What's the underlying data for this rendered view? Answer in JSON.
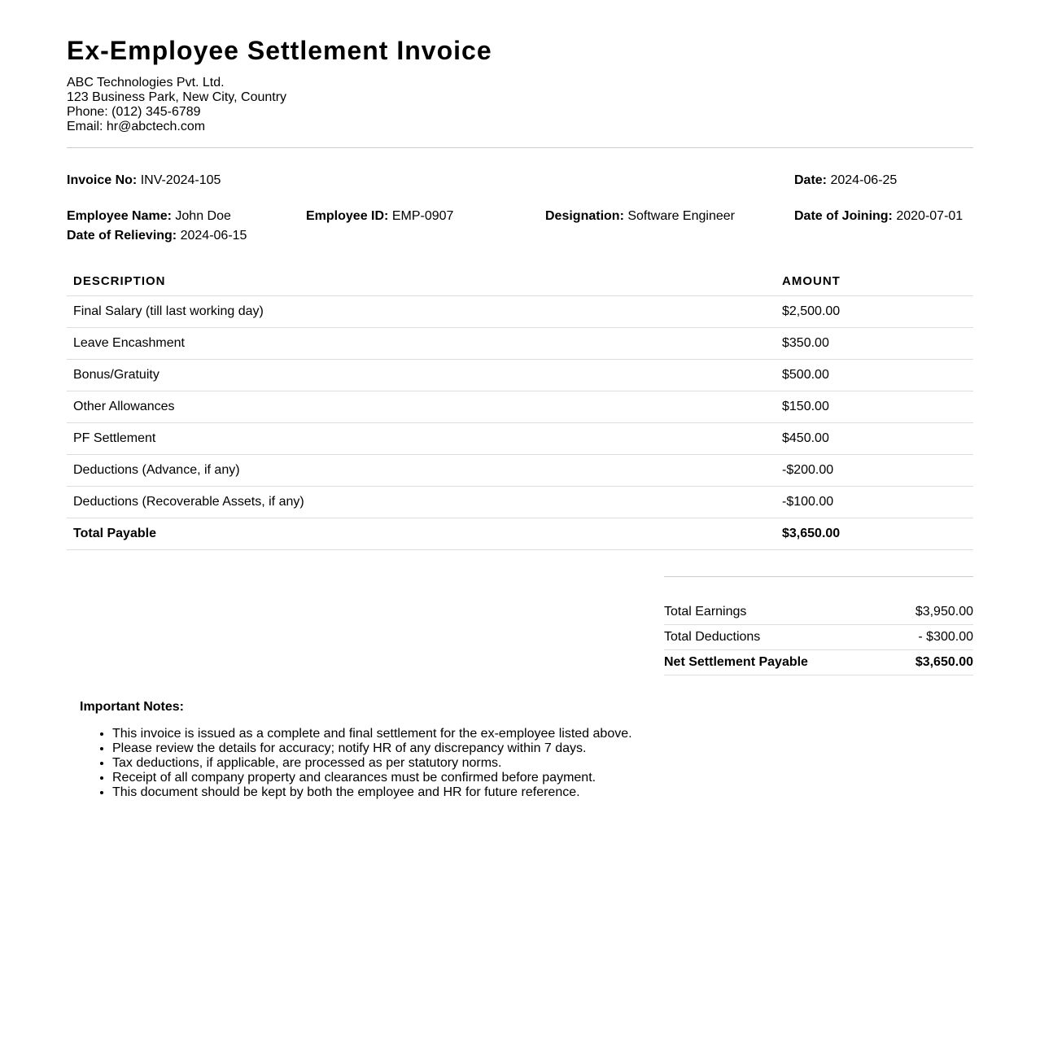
{
  "title": "Ex-Employee Settlement Invoice",
  "company": {
    "name": "ABC Technologies Pvt. Ltd.",
    "address": "123 Business Park, New City, Country",
    "phone": "Phone: (012) 345-6789",
    "email": "Email: hr@abctech.com"
  },
  "invoice": {
    "invoice_no_label": "Invoice No:",
    "invoice_no": "INV-2024-105",
    "date_label": "Date:",
    "date": "2024-06-25",
    "employee_name_label": "Employee Name:",
    "employee_name": "John Doe",
    "employee_id_label": "Employee ID:",
    "employee_id": "EMP-0907",
    "designation_label": "Designation:",
    "designation": "Software Engineer",
    "doj_label": "Date of Joining:",
    "doj": "2020-07-01",
    "dor_label": "Date of Relieving:",
    "dor": "2024-06-15"
  },
  "table": {
    "headers": [
      "DESCRIPTION",
      "AMOUNT"
    ],
    "rows": [
      {
        "description": "Final Salary (till last working day)",
        "amount": "$2,500.00"
      },
      {
        "description": "Leave Encashment",
        "amount": "$350.00"
      },
      {
        "description": "Bonus/Gratuity",
        "amount": "$500.00"
      },
      {
        "description": "Other Allowances",
        "amount": "$150.00"
      },
      {
        "description": "PF Settlement",
        "amount": "$450.00"
      },
      {
        "description": "Deductions (Advance, if any)",
        "amount": "-$200.00"
      },
      {
        "description": "Deductions (Recoverable Assets, if any)",
        "amount": "-$100.00"
      }
    ],
    "total": {
      "description": "Total Payable",
      "amount": "$3,650.00"
    }
  },
  "summary": [
    {
      "label": "Total Earnings",
      "value": "$3,950.00"
    },
    {
      "label": "Total Deductions",
      "value": "- $300.00"
    },
    {
      "label": "Net Settlement Payable",
      "value": "$3,650.00"
    }
  ],
  "notes": {
    "heading": "Important Notes:",
    "items": [
      "This invoice is issued as a complete and final settlement for the ex-employee listed above.",
      "Please review the details for accuracy; notify HR of any discrepancy within 7 days.",
      "Tax deductions, if applicable, are processed as per statutory norms.",
      "Receipt of all company property and clearances must be confirmed before payment.",
      "This document should be kept by both the employee and HR for future reference."
    ]
  }
}
